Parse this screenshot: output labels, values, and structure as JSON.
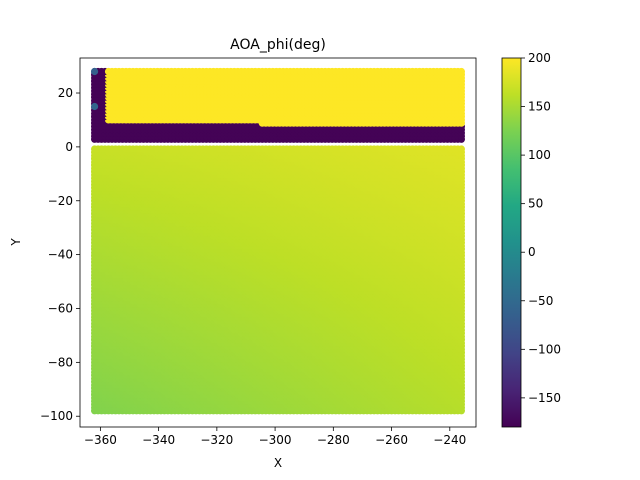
{
  "chart_data": {
    "type": "scatter",
    "title": "AOA_phi(deg)",
    "xlabel": "X",
    "ylabel": "Y",
    "xlim": [
      -367,
      -231
    ],
    "ylim": [
      -104,
      33
    ],
    "xticks": [
      -360,
      -340,
      -320,
      -300,
      -280,
      -260,
      -240
    ],
    "yticks": [
      -100,
      -80,
      -60,
      -40,
      -20,
      0,
      20
    ],
    "xtick_labels": [
      "−360",
      "−340",
      "−320",
      "−300",
      "−280",
      "−260",
      "−240"
    ],
    "ytick_labels": [
      "−100",
      "−80",
      "−60",
      "−40",
      "−20",
      "0",
      "20"
    ],
    "grid": false,
    "point_extent": {
      "x": [
        -362,
        -236
      ],
      "y": [
        -98,
        28
      ]
    },
    "colorbar": {
      "colormap": "viridis",
      "range": [
        -180,
        200
      ],
      "ticks": [
        -150,
        -100,
        -50,
        0,
        50,
        100,
        150,
        200
      ],
      "tick_labels": [
        "−150",
        "−100",
        "−50",
        "0",
        "50",
        "100",
        "150",
        "200"
      ]
    },
    "regions": [
      {
        "label": "upper band",
        "x": [
          -358,
          -236
        ],
        "y": [
          9,
          28
        ],
        "value": 200
      },
      {
        "label": "upper band right step",
        "x": [
          -305,
          -236
        ],
        "y": [
          7,
          9
        ],
        "value": 200
      },
      {
        "label": "negative strip",
        "x": [
          -362,
          -236
        ],
        "y": [
          2,
          8
        ],
        "value": -178
      },
      {
        "label": "negative strip left column",
        "x": [
          -362,
          -358
        ],
        "y": [
          2,
          28
        ],
        "value": -178
      },
      {
        "label": "corner point",
        "x": [
          -362,
          -362
        ],
        "y": [
          28,
          28
        ],
        "value": -65
      },
      {
        "label": "edge point",
        "x": [
          -362,
          -362
        ],
        "y": [
          15,
          15
        ],
        "value": -60
      },
      {
        "label": "lower field",
        "x": [
          -362,
          -236
        ],
        "y": [
          -98,
          0
        ],
        "gradient_corners": {
          "top_left": 168,
          "top_right": 182,
          "bottom_left": 128,
          "bottom_right": 158
        }
      }
    ]
  }
}
